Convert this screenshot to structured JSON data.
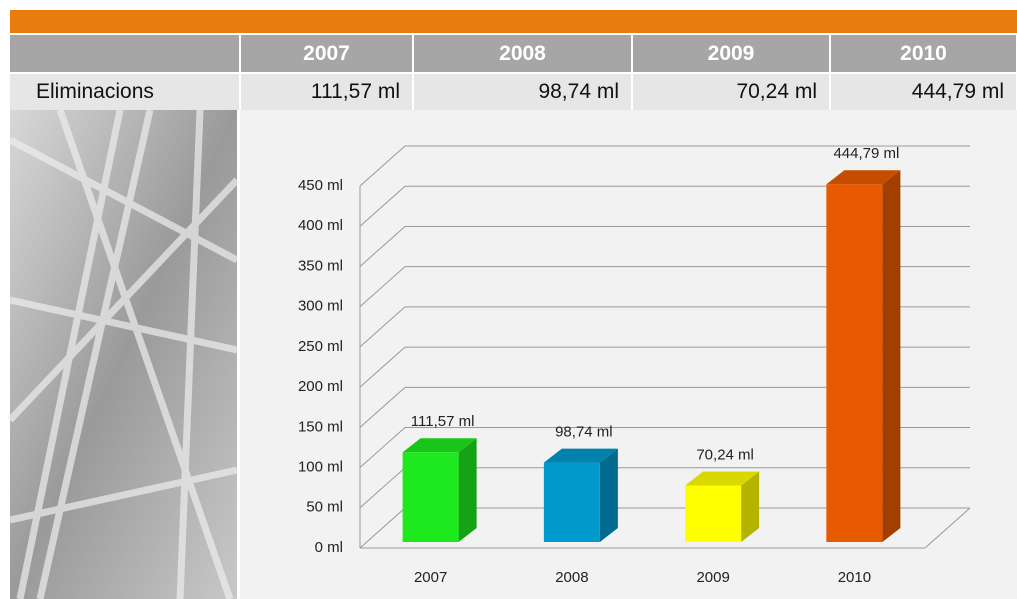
{
  "table": {
    "header": [
      "2007",
      "2008",
      "2009",
      "2010"
    ],
    "rows": [
      [
        "Eliminacions",
        "111,57 ml",
        "98,74 ml",
        "70,24 ml",
        "444,79 ml"
      ]
    ]
  },
  "chart_data": {
    "type": "bar3d",
    "categories": [
      "2007",
      "2008",
      "2009",
      "2010"
    ],
    "values": [
      111.57,
      98.74,
      70.24,
      444.79
    ],
    "value_labels": [
      "111,57 ml",
      "98,74 ml",
      "70,24 ml",
      "444,79 ml"
    ],
    "colors": [
      "#1ee81e",
      "#0099cc",
      "#ffff00",
      "#e85a00"
    ],
    "ylim": [
      0,
      450
    ],
    "yticks": [
      {
        "value": 0,
        "label": "0 ml"
      },
      {
        "value": 50,
        "label": "50 ml"
      },
      {
        "value": 100,
        "label": "100 ml"
      },
      {
        "value": 150,
        "label": "150 ml"
      },
      {
        "value": 200,
        "label": "200 ml"
      },
      {
        "value": 250,
        "label": "250 ml"
      },
      {
        "value": 300,
        "label": "300 ml"
      },
      {
        "value": 350,
        "label": "350 ml"
      },
      {
        "value": 400,
        "label": "400 ml"
      },
      {
        "value": 450,
        "label": "450 ml"
      }
    ],
    "grid": true
  }
}
